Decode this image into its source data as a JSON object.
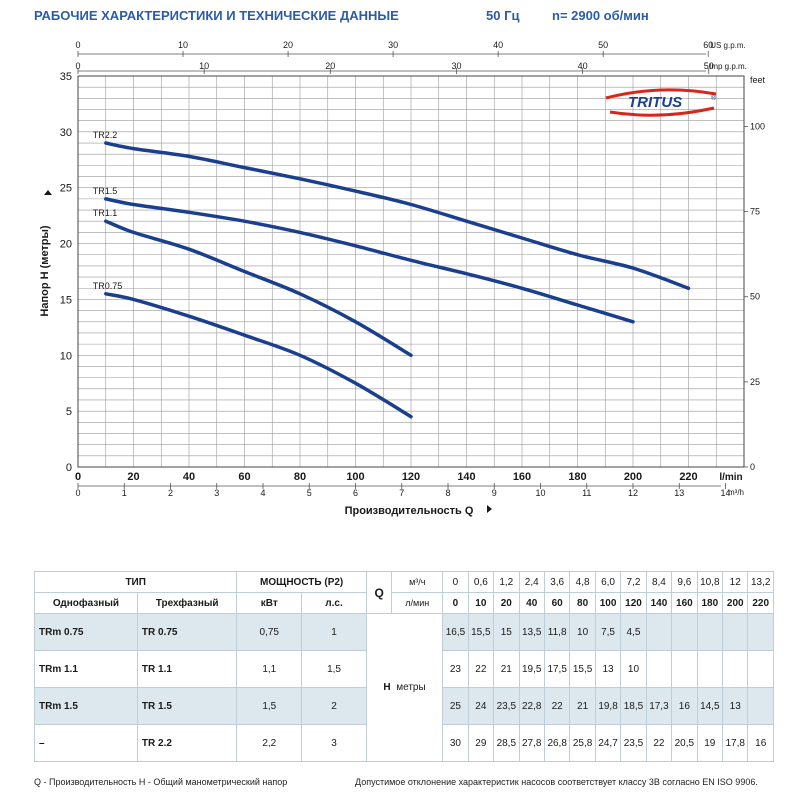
{
  "header": {
    "title": "РАБОЧИЕ ХАРАКТЕРИСТИКИ И ТЕХНИЧЕСКИЕ ДАННЫЕ",
    "frequency": "50 Гц",
    "speed": "n= 2900 об/мин"
  },
  "logo": {
    "text": "TRITUS",
    "mark": "®"
  },
  "chart_data": {
    "type": "line",
    "title": "",
    "xlabel": "Производительность Q",
    "ylabel": "Напор H (метры)",
    "xlim": [
      0,
      240
    ],
    "ylim": [
      0,
      35
    ],
    "grid": true,
    "x_ticks": [
      "0",
      "20",
      "40",
      "60",
      "80",
      "100",
      "120",
      "140",
      "160",
      "180",
      "200",
      "220"
    ],
    "y_ticks": [
      "0",
      "5",
      "10",
      "15",
      "20",
      "25",
      "30",
      "35"
    ],
    "x_unit": "l/min",
    "right_axis": {
      "unit": "feet",
      "ticks": [
        "0",
        "25",
        "50",
        "75",
        "100"
      ],
      "feet_per_meter": 3.2808
    },
    "top_axis_us": {
      "unit": "US g.p.m.",
      "ticks": [
        "0",
        "10",
        "20",
        "30",
        "40",
        "50",
        "60"
      ],
      "lpm_per_unit": 3.785
    },
    "top_axis_imp": {
      "unit": "Imp g.p.m.",
      "ticks": [
        "0",
        "10",
        "20",
        "30",
        "40",
        "50"
      ],
      "lpm_per_unit": 4.546
    },
    "bottom_axis_m3h": {
      "unit": "m³/h",
      "ticks": [
        "0",
        "1",
        "2",
        "3",
        "4",
        "5",
        "6",
        "7",
        "8",
        "9",
        "10",
        "11",
        "12",
        "13",
        "14"
      ],
      "lpm_per_unit": 16.667
    },
    "series": [
      {
        "name": "TR2.2",
        "x": [
          10,
          20,
          40,
          60,
          80,
          100,
          120,
          140,
          160,
          180,
          200,
          220
        ],
        "y": [
          29,
          28.5,
          27.8,
          26.8,
          25.8,
          24.7,
          23.5,
          22,
          20.5,
          19,
          17.8,
          16
        ]
      },
      {
        "name": "TR1.5",
        "x": [
          10,
          20,
          40,
          60,
          80,
          100,
          120,
          140,
          160,
          180,
          200
        ],
        "y": [
          24,
          23.5,
          22.8,
          22,
          21,
          19.8,
          18.5,
          17.3,
          16,
          14.5,
          13
        ]
      },
      {
        "name": "TR1.1",
        "x": [
          10,
          20,
          40,
          60,
          80,
          100,
          120
        ],
        "y": [
          22,
          21,
          19.5,
          17.5,
          15.5,
          13,
          10
        ]
      },
      {
        "name": "TR0.75",
        "x": [
          10,
          20,
          40,
          60,
          80,
          100,
          120
        ],
        "y": [
          15.5,
          15,
          13.5,
          11.8,
          10,
          7.5,
          4.5
        ]
      }
    ]
  },
  "table": {
    "head_type": "ТИП",
    "head_power": "МОЩНОСТЬ (P2)",
    "q_label": "Q",
    "unit_m3h": "м³/ч",
    "unit_lmin": "л/мин",
    "col_single": "Однофазный",
    "col_three": "Трехфазный",
    "col_kw": "кВт",
    "col_hp": "л.с.",
    "q_m3h": [
      "0",
      "0,6",
      "1,2",
      "2,4",
      "3,6",
      "4,8",
      "6,0",
      "7,2",
      "8,4",
      "9,6",
      "10,8",
      "12",
      "13,2"
    ],
    "q_lmin": [
      "0",
      "10",
      "20",
      "40",
      "60",
      "80",
      "100",
      "120",
      "140",
      "160",
      "180",
      "200",
      "220"
    ],
    "h_label": "H",
    "h_unit": "метры",
    "rows": [
      {
        "single": "TRm 0.75",
        "three": "TR 0.75",
        "kw": "0,75",
        "hp": "1",
        "h": [
          "16,5",
          "15,5",
          "15",
          "13,5",
          "11,8",
          "10",
          "7,5",
          "4,5",
          "",
          "",
          "",
          "",
          ""
        ]
      },
      {
        "single": "TRm 1.1",
        "three": "TR 1.1",
        "kw": "1,1",
        "hp": "1,5",
        "h": [
          "23",
          "22",
          "21",
          "19,5",
          "17,5",
          "15,5",
          "13",
          "10",
          "",
          "",
          "",
          "",
          ""
        ]
      },
      {
        "single": "TRm 1.5",
        "three": "TR 1.5",
        "kw": "1,5",
        "hp": "2",
        "h": [
          "25",
          "24",
          "23,5",
          "22,8",
          "22",
          "21",
          "19,8",
          "18,5",
          "17,3",
          "16",
          "14,5",
          "13",
          ""
        ]
      },
      {
        "single": "–",
        "three": "TR 2.2",
        "kw": "2,2",
        "hp": "3",
        "h": [
          "30",
          "29",
          "28,5",
          "27,8",
          "26,8",
          "25,8",
          "24,7",
          "23,5",
          "22",
          "20,5",
          "19",
          "17,8",
          "16"
        ]
      }
    ]
  },
  "footer": {
    "left": "Q - Производительность   H - Общий манометрический напор",
    "right": "Допустимое отклонение характеристик насосов соответствует классу 3B согласно EN ISO 9906."
  },
  "colors": {
    "curve": "#1b3f8f",
    "grid": "#9a9a9a",
    "accent": "#2b5ca8",
    "logo_red": "#d9261c",
    "table_shade": "#dde8ee"
  }
}
